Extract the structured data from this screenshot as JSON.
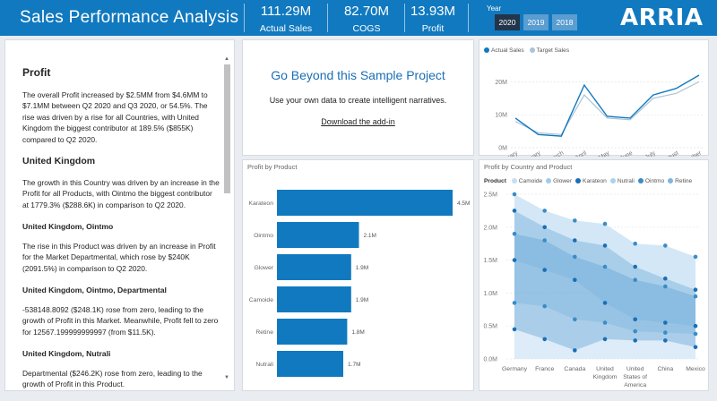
{
  "header": {
    "title": "Sales Performance Analysis",
    "kpis": [
      {
        "value": "111.29M",
        "label": "Actual Sales"
      },
      {
        "value": "82.70M",
        "label": "COGS"
      },
      {
        "value": "13.93M",
        "label": "Profit"
      }
    ],
    "year_label": "Year",
    "years": [
      "2020",
      "2019",
      "2018"
    ],
    "selected_year": "2020",
    "logo": "ARRIA",
    "colors": {
      "bar": "#1179bf",
      "selected": "#22354a",
      "button": "#5a9dd0"
    }
  },
  "narrative": {
    "heading": "Profit",
    "p1": "The overall Profit increased by $2.5MM from $4.6MM to $7.1MM between Q2 2020 and Q3 2020, or 54.5%. The rise was driven by a rise for all Countries, with United Kingdom the biggest contributor at 189.5% ($855K) compared to Q2 2020.",
    "h_uk": "United Kingdom",
    "p2": "The growth in this Country was driven by an increase in the Profit for all Products, with Ointmo the biggest contributor at 1779.3% ($288.6K) in comparison to Q2 2020.",
    "h_uk_ointmo": "United Kingdom, Ointmo",
    "p3": "The rise in this Product was driven by an increase in Profit for the Market Departmental, which rose by $240K (2091.5%) in comparison to Q2 2020.",
    "h_uk_ointmo_dept": "United Kingdom, Ointmo, Departmental",
    "p4": "-538148.8092 ($248.1K) rose from zero, leading to the growth of Profit in this Market. Meanwhile, Profit fell to zero for 12567.199999999997 (from $11.5K).",
    "h_uk_nutrali": "United Kingdom, Nutrali",
    "p5": "Departmental ($246.2K) rose from zero, leading to the growth of Profit in this Product."
  },
  "promo": {
    "title": "Go Beyond this Sample Project",
    "subtitle": "Use your own data to create intelligent narratives.",
    "link": "Download the add-in"
  },
  "chart_data": [
    {
      "type": "line",
      "legend": [
        "Actual Sales",
        "Target Sales"
      ],
      "categories": [
        "January",
        "February",
        "March",
        "April",
        "May",
        "June",
        "July",
        "August",
        "September"
      ],
      "series": [
        {
          "name": "Actual Sales",
          "color": "#1179bf",
          "values": [
            9,
            4,
            3.5,
            19,
            9.5,
            9,
            16,
            18,
            22
          ]
        },
        {
          "name": "Target Sales",
          "color": "#a9c4d6",
          "values": [
            8,
            4.5,
            4,
            16,
            9,
            8.5,
            15,
            16.5,
            20
          ]
        }
      ],
      "y_ticks": [
        "0M",
        "10M",
        "20M"
      ],
      "ylim": [
        0,
        25
      ]
    },
    {
      "type": "bar",
      "orientation": "horizontal",
      "title": "Profit by Product",
      "categories": [
        "Karateon",
        "Ointmo",
        "Glower",
        "Camoide",
        "Retine",
        "Nutrali"
      ],
      "values": [
        4.5,
        2.1,
        1.9,
        1.9,
        1.8,
        1.7
      ],
      "value_labels": [
        "4.5M",
        "2.1M",
        "1.9M",
        "1.9M",
        "1.8M",
        "1.7M"
      ],
      "color": "#1179bf",
      "xlim": [
        0,
        4.5
      ]
    },
    {
      "type": "area",
      "title": "Profit by Country and Product",
      "legend_title": "Product",
      "categories": [
        "Germany",
        "France",
        "Canada",
        "United Kingdom",
        "United States of America",
        "China",
        "Mexico"
      ],
      "category_lines": [
        [
          "Germany"
        ],
        [
          "France"
        ],
        [
          "Canada"
        ],
        [
          "United",
          "Kingdom"
        ],
        [
          "United",
          "States of",
          "America"
        ],
        [
          "China"
        ],
        [
          "Mexico"
        ]
      ],
      "y_ticks": [
        "0.0M",
        "0.5M",
        "1.0M",
        "1.5M",
        "2.0M",
        "2.5M"
      ],
      "ylim": [
        0,
        2.5
      ],
      "series": [
        {
          "name": "Camoide",
          "color": "#c6def1",
          "values": [
            0.85,
            0.8,
            0.6,
            0.55,
            0.42,
            0.4,
            0.38
          ]
        },
        {
          "name": "Glower",
          "color": "#9fcbea",
          "values": [
            1.9,
            1.8,
            1.55,
            1.4,
            1.2,
            1.1,
            0.95
          ]
        },
        {
          "name": "Karateon",
          "color": "#1a6fb5",
          "values": [
            2.25,
            2.0,
            1.8,
            1.72,
            1.4,
            1.22,
            1.05
          ]
        },
        {
          "name": "Nutrali",
          "color": "#a9d2ef",
          "values": [
            2.5,
            2.25,
            2.1,
            2.05,
            1.75,
            1.72,
            1.55
          ]
        },
        {
          "name": "Ointmo",
          "color": "#3b8cc6",
          "values": [
            0.45,
            0.3,
            0.13,
            0.3,
            0.28,
            0.28,
            0.18
          ]
        },
        {
          "name": "Retine",
          "color": "#7fb5de",
          "values": [
            1.5,
            1.35,
            1.2,
            0.85,
            0.6,
            0.55,
            0.5
          ]
        }
      ]
    }
  ]
}
